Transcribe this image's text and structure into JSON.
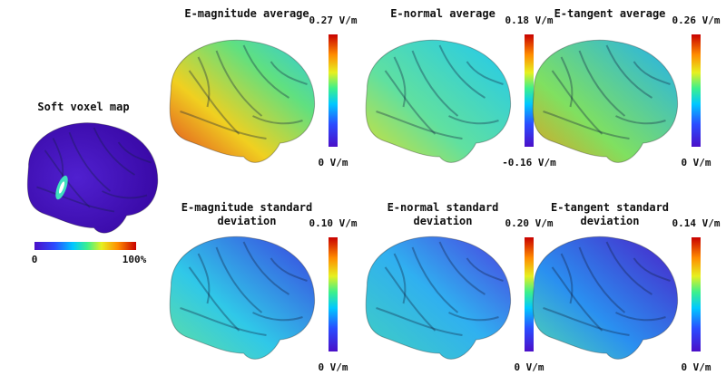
{
  "voxel_map": {
    "title": "Soft voxel map",
    "min_label": "0",
    "max_label": "100%"
  },
  "panels": [
    {
      "title": [
        "E-magnitude average"
      ],
      "max_label": "0.27 V/m",
      "min_label": "0 V/m"
    },
    {
      "title": [
        "E-normal average"
      ],
      "max_label": "0.18 V/m",
      "min_label": "-0.16 V/m"
    },
    {
      "title": [
        "E-tangent average"
      ],
      "max_label": "0.26 V/m",
      "min_label": "0 V/m"
    },
    {
      "title": [
        "E-magnitude standard",
        "deviation"
      ],
      "max_label": "0.10 V/m",
      "min_label": "0 V/m"
    },
    {
      "title": [
        "E-normal standard",
        "deviation"
      ],
      "max_label": "0.20 V/m",
      "min_label": "0 V/m"
    },
    {
      "title": [
        "E-tangent standard",
        "deviation"
      ],
      "max_label": "0.14 V/m",
      "min_label": "0 V/m"
    }
  ]
}
